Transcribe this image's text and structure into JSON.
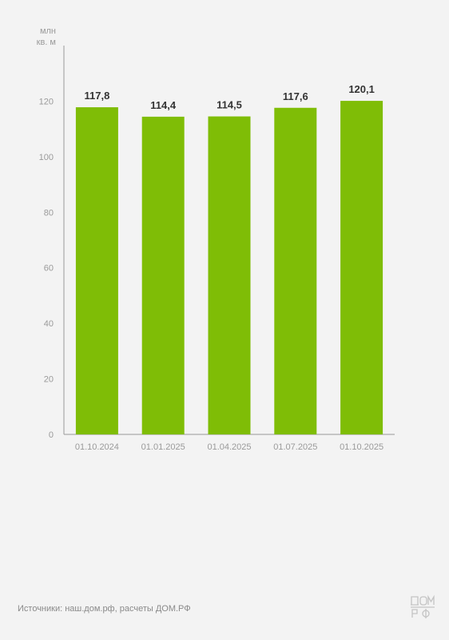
{
  "chart_data": {
    "type": "bar",
    "unit_label": [
      "млн",
      "кв. м"
    ],
    "categories": [
      "01.10.2024",
      "01.01.2025",
      "01.04.2025",
      "01.07.2025",
      "01.10.2025"
    ],
    "values": [
      117.8,
      114.4,
      114.5,
      117.6,
      120.1
    ],
    "value_labels": [
      "117,8",
      "114,4",
      "114,5",
      "117,6",
      "120,1"
    ],
    "yticks": [
      0,
      20,
      40,
      60,
      80,
      100,
      120
    ],
    "ylim": [
      0,
      140
    ],
    "grid": false,
    "colors": {
      "bar": "#7fbd06",
      "axis": "#9a9a9a",
      "tick_text": "#9a9a9a",
      "value_text": "#333333"
    }
  },
  "footer": {
    "source": "Источники: наш.дом.рф, расчеты ДОМ.РФ"
  },
  "logo": {
    "icon": "dom-rf-logo-icon",
    "text": "ДОМ РФ"
  }
}
